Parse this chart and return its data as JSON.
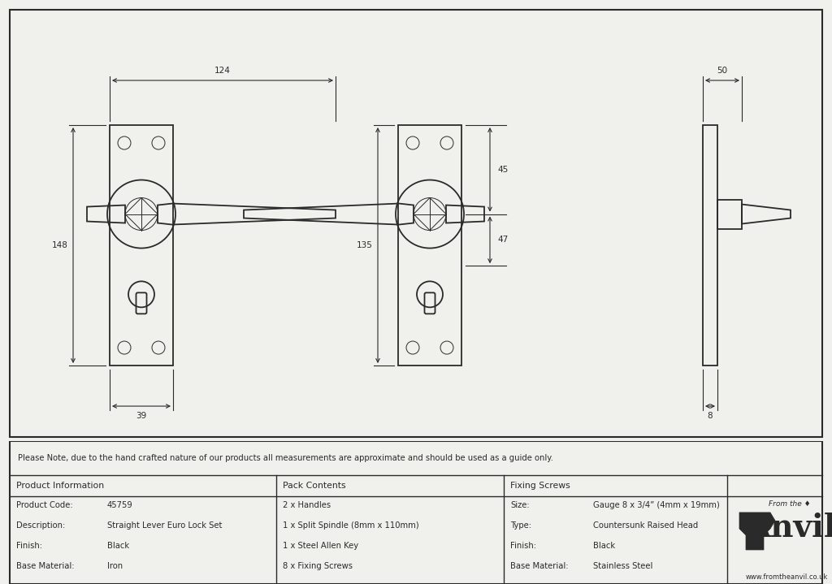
{
  "bg_color": "#f0f0ec",
  "line_color": "#2a2a2a",
  "note_text": "Please Note, due to the hand crafted nature of our products all measurements are approximate and should be used as a guide only.",
  "table_data": {
    "col1_header": "Product Information",
    "col2_header": "Pack Contents",
    "col3_header": "Fixing Screws",
    "col1_rows": [
      [
        "Product Code:",
        "45759"
      ],
      [
        "Description:",
        "Straight Lever Euro Lock Set"
      ],
      [
        "Finish:",
        "Black"
      ],
      [
        "Base Material:",
        "Iron"
      ]
    ],
    "col2_rows": [
      "2 x Handles",
      "1 x Split Spindle (8mm x 110mm)",
      "1 x Steel Allen Key",
      "8 x Fixing Screws"
    ],
    "col3_rows": [
      [
        "Size:",
        "Gauge 8 x 3/4” (4mm x 19mm)"
      ],
      [
        "Type:",
        "Countersunk Raised Head"
      ],
      [
        "Finish:",
        "Black"
      ],
      [
        "Base Material:",
        "Stainless Steel"
      ]
    ]
  },
  "dims": {
    "d124": "124",
    "d148": "148",
    "d39": "39",
    "d135": "135",
    "d45": "45",
    "d47": "47",
    "d50": "50",
    "d8": "8"
  },
  "anvil_url": "www.fromtheanvil.co.uk"
}
